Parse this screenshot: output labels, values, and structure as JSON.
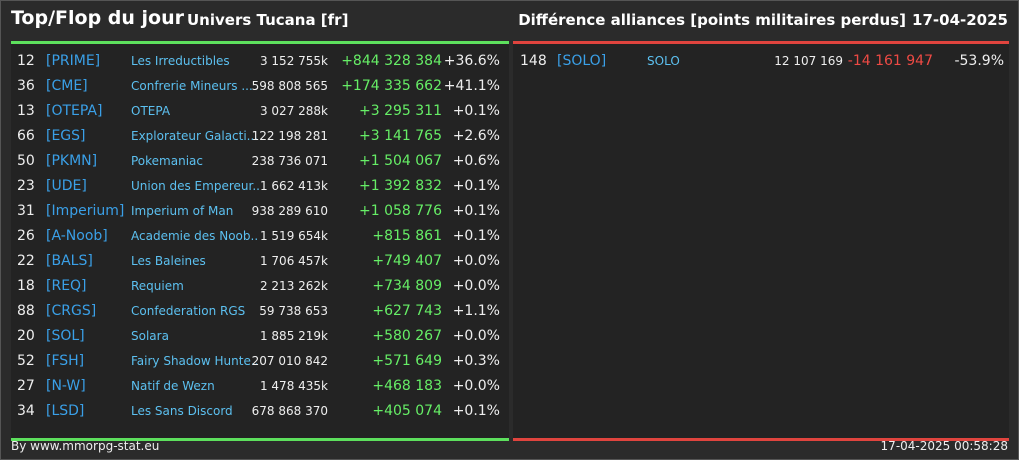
{
  "header": {
    "title": "Top/Flop du jour",
    "subtitle": "Univers Tucana [fr]",
    "right_title": "Différence alliances [points militaires perdus]",
    "date": "17-04-2025"
  },
  "top": {
    "rows": [
      [
        "12",
        "[PRIME]",
        "Les Irreductibles",
        "3 152 755k",
        "+844 328 384",
        "+36.6%"
      ],
      [
        "36",
        "[CME]",
        "Confrerie Mineurs ...",
        "598 808 565",
        "+174 335 662",
        "+41.1%"
      ],
      [
        "13",
        "[OTEPA]",
        "OTEPA",
        "3 027 288k",
        "+3 295 311",
        "+0.1%"
      ],
      [
        "66",
        "[EGS]",
        "Explorateur Galacti...",
        "122 198 281",
        "+3 141 765",
        "+2.6%"
      ],
      [
        "50",
        "[PKMN]",
        "Pokemaniac",
        "238 736 071",
        "+1 504 067",
        "+0.6%"
      ],
      [
        "23",
        "[UDE]",
        "Union des Empereur...",
        "1 662 413k",
        "+1 392 832",
        "+0.1%"
      ],
      [
        "31",
        "[Imperium]",
        "Imperium of Man",
        "938 289 610",
        "+1 058 776",
        "+0.1%"
      ],
      [
        "26",
        "[A-Noob]",
        "Academie des Noob...",
        "1 519 654k",
        "+815 861",
        "+0.1%"
      ],
      [
        "22",
        "[BALS]",
        "Les Baleines",
        "1 706 457k",
        "+749 407",
        "+0.0%"
      ],
      [
        "18",
        "[REQ]",
        "Requiem",
        "2 213 262k",
        "+734 809",
        "+0.0%"
      ],
      [
        "88",
        "[CRGS]",
        "Confederation RGS",
        "59 738 653",
        "+627 743",
        "+1.1%"
      ],
      [
        "20",
        "[SOL]",
        "Solara",
        "1 885 219k",
        "+580 267",
        "+0.0%"
      ],
      [
        "52",
        "[FSH]",
        "Fairy Shadow Hunte...",
        "207 010 842",
        "+571 649",
        "+0.3%"
      ],
      [
        "27",
        "[N-W]",
        "Natif de Wezn",
        "1 478 435k",
        "+468 183",
        "+0.0%"
      ],
      [
        "34",
        "[LSD]",
        "Les Sans Discord",
        "678 868 370",
        "+405 074",
        "+0.1%"
      ]
    ]
  },
  "flop": {
    "rows": [
      [
        "148",
        "[SOLO]",
        "SOLO",
        "12 107 169",
        "-14 161 947",
        "-53.9%"
      ]
    ]
  },
  "footer": {
    "left": "By www.mmorpg-stat.eu",
    "right": "17-04-2025 00:58:28"
  }
}
